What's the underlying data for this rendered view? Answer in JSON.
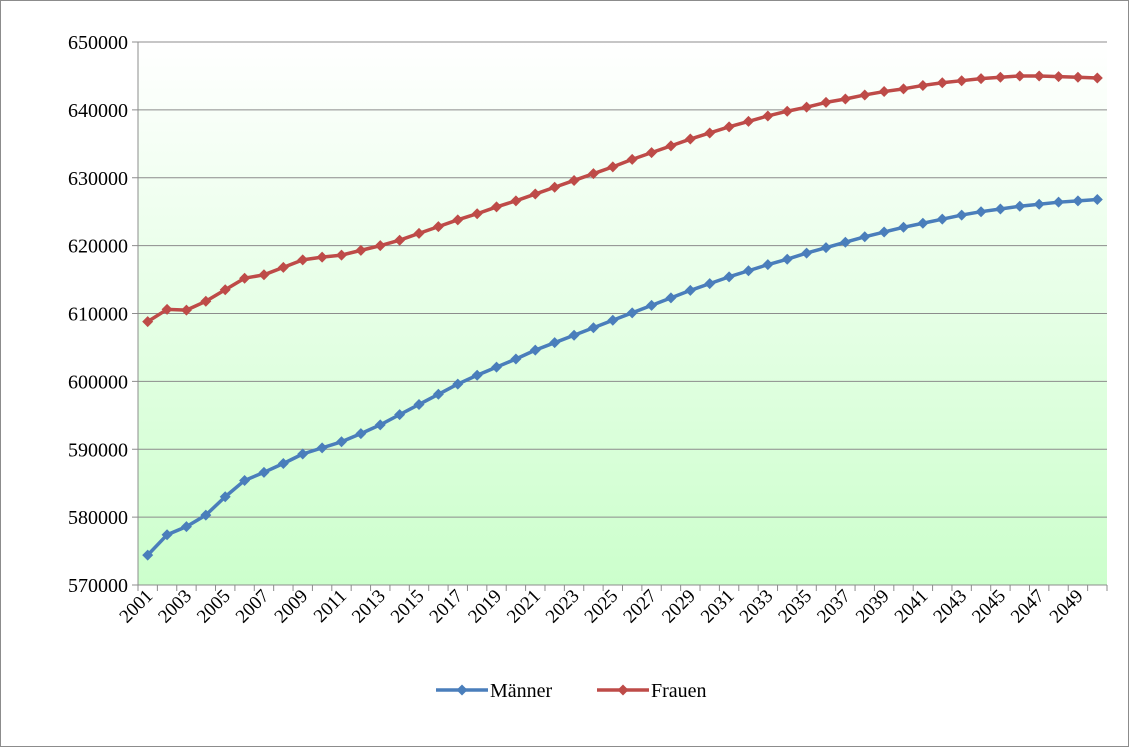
{
  "chart_data": {
    "type": "line",
    "title": "",
    "xlabel": "",
    "ylabel": "",
    "x": [
      2001,
      2002,
      2003,
      2004,
      2005,
      2006,
      2007,
      2008,
      2009,
      2010,
      2011,
      2012,
      2013,
      2014,
      2015,
      2016,
      2017,
      2018,
      2019,
      2020,
      2021,
      2022,
      2023,
      2024,
      2025,
      2026,
      2027,
      2028,
      2029,
      2030,
      2031,
      2032,
      2033,
      2034,
      2035,
      2036,
      2037,
      2038,
      2039,
      2040,
      2041,
      2042,
      2043,
      2044,
      2045,
      2046,
      2047,
      2048,
      2049,
      2050
    ],
    "x_tick_labels": [
      "2001",
      "2003",
      "2005",
      "2007",
      "2009",
      "2011",
      "2013",
      "2015",
      "2017",
      "2019",
      "2021",
      "2023",
      "2025",
      "2027",
      "2029",
      "2031",
      "2033",
      "2035",
      "2037",
      "2039",
      "2041",
      "2043",
      "2045",
      "2047",
      "2049"
    ],
    "ylim": [
      570000,
      650000
    ],
    "y_ticks": [
      570000,
      580000,
      590000,
      600000,
      610000,
      620000,
      630000,
      640000,
      650000
    ],
    "y_tick_labels": [
      "570000",
      "580000",
      "590000",
      "600000",
      "610000",
      "620000",
      "630000",
      "640000",
      "650000"
    ],
    "grid": "horizontal",
    "legend_position": "bottom",
    "series": [
      {
        "name": "Männer",
        "color": "#4a7ebb",
        "values": [
          574400,
          577400,
          578600,
          580300,
          583000,
          585400,
          586600,
          587900,
          589300,
          590200,
          591100,
          592300,
          593600,
          595100,
          596600,
          598100,
          599600,
          600900,
          602100,
          603300,
          604600,
          605700,
          606800,
          607900,
          609000,
          610100,
          611200,
          612300,
          613400,
          614400,
          615400,
          616300,
          617200,
          618000,
          618900,
          619700,
          620500,
          621300,
          622000,
          622700,
          623300,
          623900,
          624500,
          625000,
          625400,
          625800,
          626100,
          626400,
          626600,
          626800
        ]
      },
      {
        "name": "Frauen",
        "color": "#be4b48",
        "values": [
          608800,
          610600,
          610500,
          611800,
          613500,
          615200,
          615700,
          616800,
          617900,
          618300,
          618600,
          619300,
          620000,
          620800,
          621800,
          622800,
          623800,
          624700,
          625700,
          626600,
          627600,
          628600,
          629600,
          630600,
          631600,
          632700,
          633700,
          634700,
          635700,
          636600,
          637500,
          638300,
          639100,
          639800,
          640400,
          641100,
          641600,
          642200,
          642700,
          643100,
          643600,
          644000,
          644300,
          644600,
          644800,
          645000,
          645000,
          644900,
          644800,
          644700
        ]
      }
    ]
  }
}
